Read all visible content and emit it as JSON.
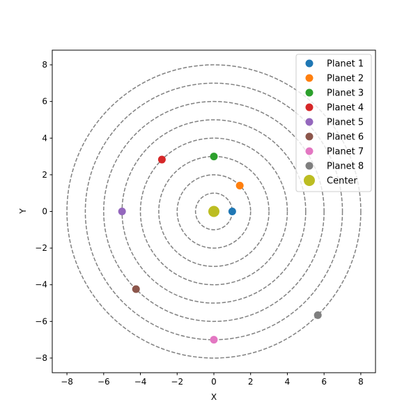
{
  "chart_data": {
    "type": "scatter",
    "title": "",
    "xlabel": "X",
    "ylabel": "Y",
    "xlim": [
      -8.8,
      8.8
    ],
    "ylim": [
      -8.8,
      8.8
    ],
    "xticks": [
      -8,
      -6,
      -4,
      -2,
      0,
      2,
      4,
      6,
      8
    ],
    "yticks": [
      -8,
      -6,
      -4,
      -2,
      0,
      2,
      4,
      6,
      8
    ],
    "xtick_labels": [
      "−8",
      "−6",
      "−4",
      "−2",
      "0",
      "2",
      "4",
      "6",
      "8"
    ],
    "ytick_labels": [
      "−8",
      "−6",
      "−4",
      "−2",
      "0",
      "2",
      "4",
      "6",
      "8"
    ],
    "grid": false,
    "legend_position": "top-right",
    "orbits": [
      {
        "radius": 1,
        "color": "#808080",
        "style": "dashed"
      },
      {
        "radius": 2,
        "color": "#808080",
        "style": "dashed"
      },
      {
        "radius": 3,
        "color": "#808080",
        "style": "dashed"
      },
      {
        "radius": 4,
        "color": "#808080",
        "style": "dashed"
      },
      {
        "radius": 5,
        "color": "#808080",
        "style": "dashed"
      },
      {
        "radius": 6,
        "color": "#808080",
        "style": "dashed"
      },
      {
        "radius": 7,
        "color": "#808080",
        "style": "dashed"
      },
      {
        "radius": 8,
        "color": "#808080",
        "style": "dashed"
      }
    ],
    "series": [
      {
        "name": "Planet 1",
        "x": 1.0,
        "y": 0.0,
        "color": "#1f77b4"
      },
      {
        "name": "Planet 2",
        "x": 1.41,
        "y": 1.41,
        "color": "#ff7f0e"
      },
      {
        "name": "Planet 3",
        "x": 0.0,
        "y": 3.0,
        "color": "#2ca02c"
      },
      {
        "name": "Planet 4",
        "x": -2.83,
        "y": 2.83,
        "color": "#d62728"
      },
      {
        "name": "Planet 5",
        "x": -5.0,
        "y": 0.0,
        "color": "#9467bd"
      },
      {
        "name": "Planet 6",
        "x": -4.24,
        "y": -4.24,
        "color": "#8c564b"
      },
      {
        "name": "Planet 7",
        "x": 0.0,
        "y": -7.0,
        "color": "#e377c2"
      },
      {
        "name": "Planet 8",
        "x": 5.66,
        "y": -5.66,
        "color": "#7f7f7f"
      },
      {
        "name": "Center",
        "x": 0.0,
        "y": 0.0,
        "color": "#bcbd22",
        "marker": "large"
      }
    ]
  }
}
